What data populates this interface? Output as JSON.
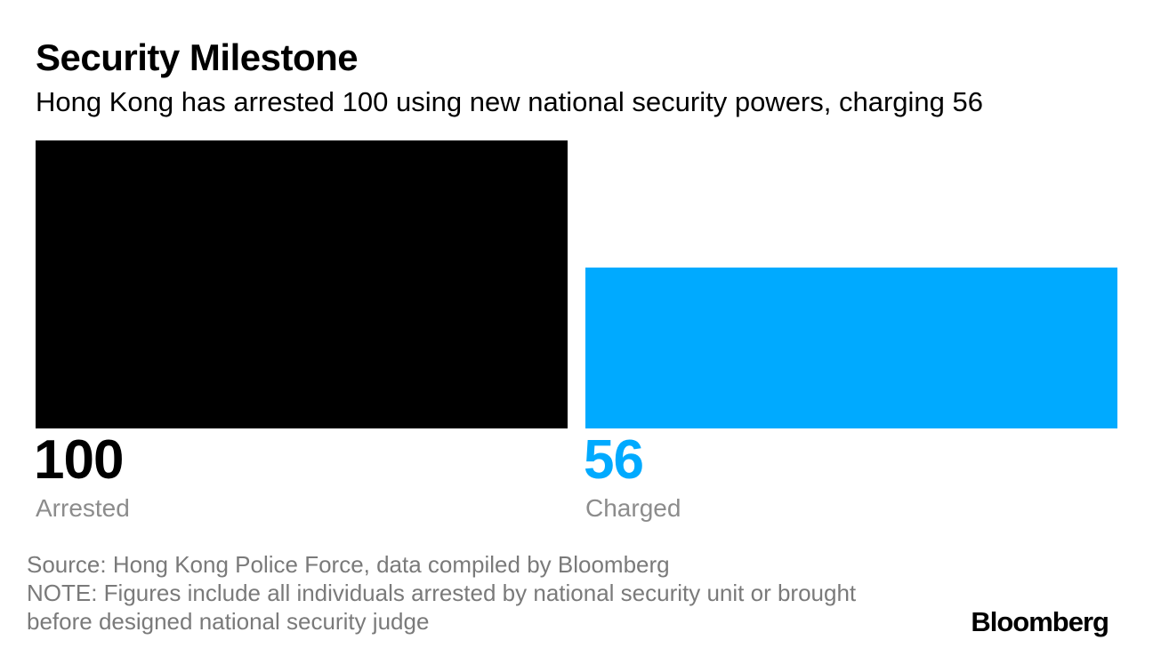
{
  "header": {
    "title": "Security Milestone",
    "subtitle": "Hong Kong has arrested 100 using new national security powers, charging 56"
  },
  "chart_data": {
    "type": "bar",
    "title": "Security Milestone",
    "subtitle": "Hong Kong has arrested 100 using new national security powers, charging 56",
    "categories": [
      "Arrested",
      "Charged"
    ],
    "values": [
      100,
      56
    ],
    "value_labels": [
      "100",
      "56"
    ],
    "colors": [
      "#000000",
      "#00aaff"
    ],
    "ylim": [
      0,
      100
    ],
    "grid": false,
    "legend": "none"
  },
  "footer": {
    "source": "Source: Hong Kong Police Force, data compiled by Bloomberg",
    "note_line1": "NOTE: Figures include all individuals arrested by national security unit or brought",
    "note_line2": "before designed national security judge"
  },
  "brand": {
    "logo": "Bloomberg"
  }
}
